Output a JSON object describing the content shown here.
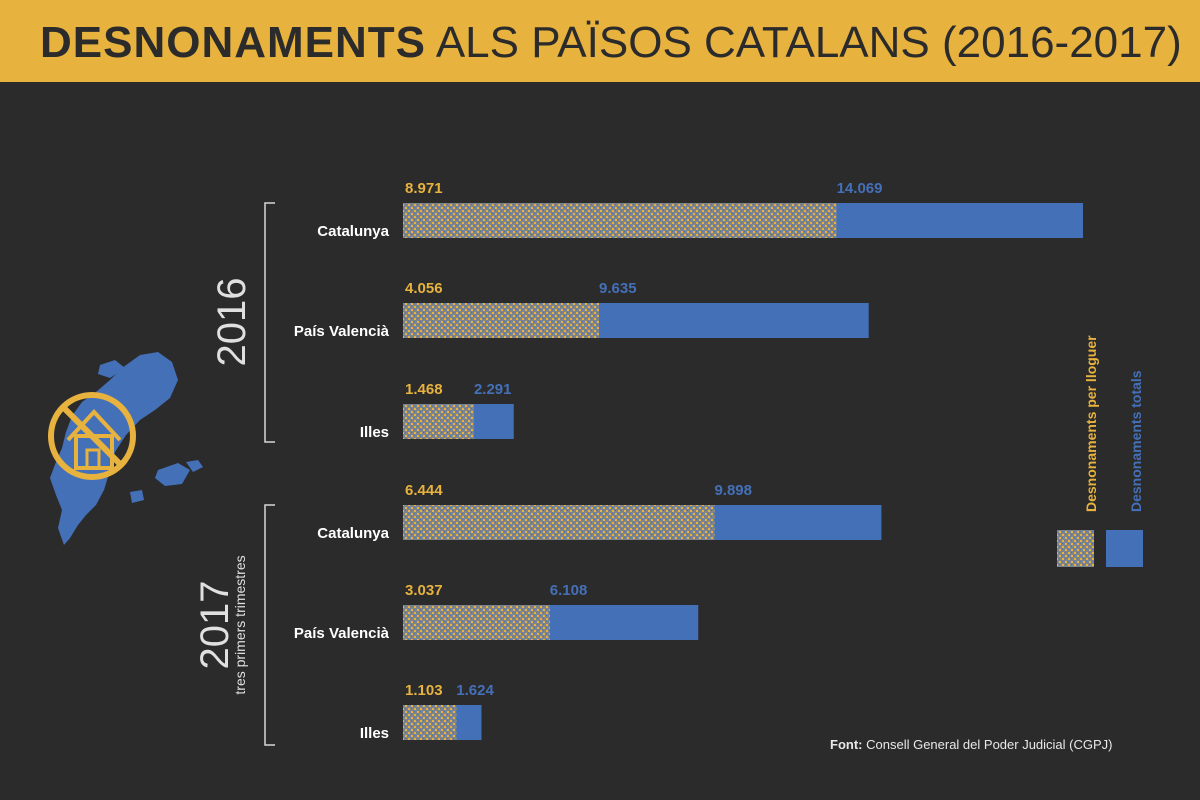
{
  "header": {
    "title_bold": "DESNONAMENTS",
    "title_rest": "ALS PAÏSOS CATALANS (2016-2017)"
  },
  "colors": {
    "background": "#2b2b2c",
    "header": "#e7b23e",
    "rental": "#e7b23e",
    "total": "#4470b8",
    "label": "#ffffff"
  },
  "icons": [
    "catalan-countries-map-icon",
    "no-house-icon"
  ],
  "source": {
    "label": "Font:",
    "text": "Consell General del Poder Judicial (CGPJ)"
  },
  "chart_data": {
    "type": "bar",
    "orientation": "horizontal",
    "xlim": [
      0,
      14069
    ],
    "groups": [
      {
        "label": "2016",
        "sublabel": ""
      },
      {
        "label": "2017",
        "sublabel": "tres primers trimestres"
      }
    ],
    "categories": [
      "Catalunya",
      "País Valencià",
      "Illes",
      "Catalunya",
      "País Valencià",
      "Illes"
    ],
    "category_group": [
      0,
      0,
      0,
      1,
      1,
      1
    ],
    "series": [
      {
        "name": "Desnonaments totals",
        "color": "#4470b8",
        "values": [
          14069,
          9635,
          2291,
          9898,
          6108,
          1624
        ],
        "labels": [
          "14.069",
          "9.635",
          "2.291",
          "9.898",
          "6.108",
          "1.624"
        ]
      },
      {
        "name": "Desnonaments per lloguer",
        "color": "#e7b23e",
        "pattern": "dotted",
        "values": [
          8971,
          4056,
          1468,
          6444,
          3037,
          1103
        ],
        "labels": [
          "8.971",
          "4.056",
          "1.468",
          "6.444",
          "3.037",
          "1.103"
        ]
      }
    ],
    "legend": {
      "position": "right",
      "orientation": "vertical-text"
    }
  }
}
